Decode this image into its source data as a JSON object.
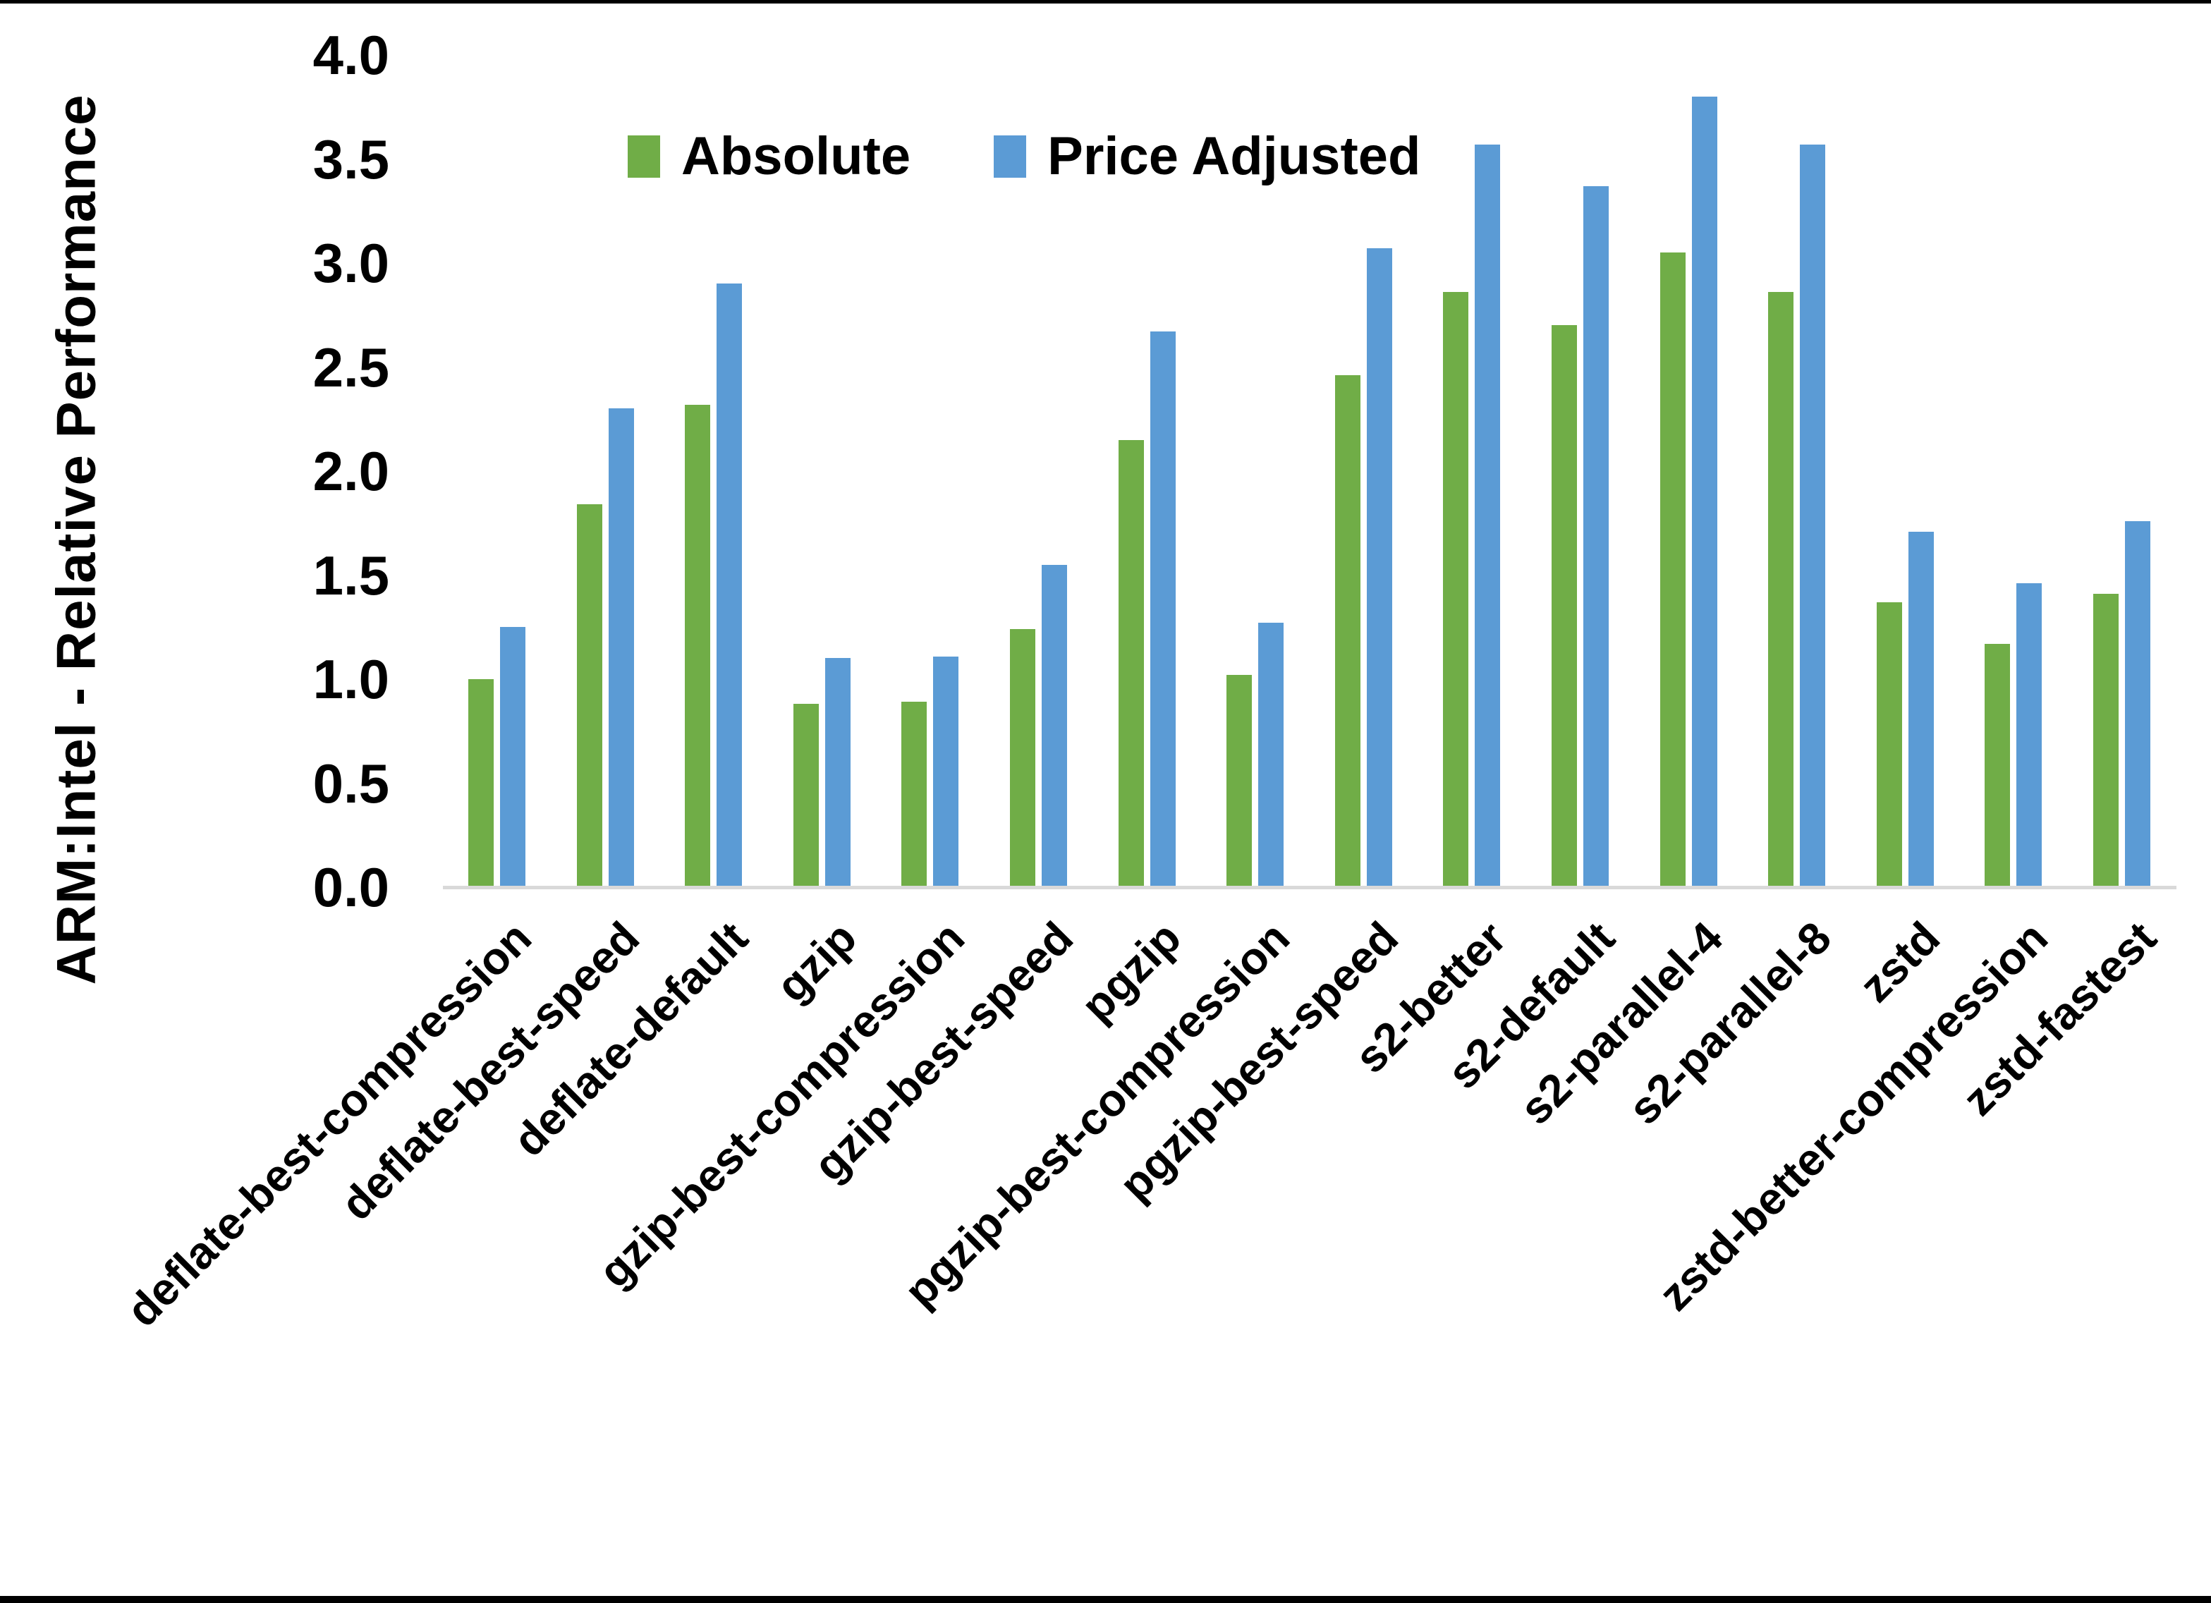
{
  "page": {
    "background": "#FFFFFF",
    "top_border_color": "#000000",
    "bottom_border_color": "#000000"
  },
  "chart_data": {
    "type": "bar",
    "title": "",
    "xlabel": "",
    "ylabel": "ARM:Intel - Relative Performance",
    "ylim": [
      0.0,
      4.0
    ],
    "ytick_step": 0.5,
    "yticks": [
      "4.0",
      "3.5",
      "3.0",
      "2.5",
      "2.0",
      "1.5",
      "1.0",
      "0.5",
      "0.0"
    ],
    "grid": false,
    "legend_position": "top-center",
    "axis_line_color": "#D9D9D9",
    "categories": [
      "deflate-best-compression",
      "deflate-best-speed",
      "deflate-default",
      "gzip",
      "gzip-best-compression",
      "gzip-best-speed",
      "pgzip",
      "pgzip-best-compression",
      "pgzip-best-speed",
      "s2-better",
      "s2-default",
      "s2-parallel-4",
      "s2-parallel-8",
      "zstd",
      "zstd-better-compression",
      "zstd-fastest"
    ],
    "series": [
      {
        "name": "Absolute",
        "color": "#70AD47",
        "values": [
          1.0,
          1.84,
          2.32,
          0.88,
          0.89,
          1.24,
          2.15,
          1.02,
          2.46,
          2.86,
          2.7,
          3.05,
          2.86,
          1.37,
          1.17,
          1.41
        ]
      },
      {
        "name": "Price Adjusted",
        "color": "#5B9BD5",
        "values": [
          1.25,
          2.3,
          2.9,
          1.1,
          1.11,
          1.55,
          2.67,
          1.27,
          3.07,
          3.57,
          3.37,
          3.8,
          3.57,
          1.71,
          1.46,
          1.76
        ]
      }
    ]
  }
}
